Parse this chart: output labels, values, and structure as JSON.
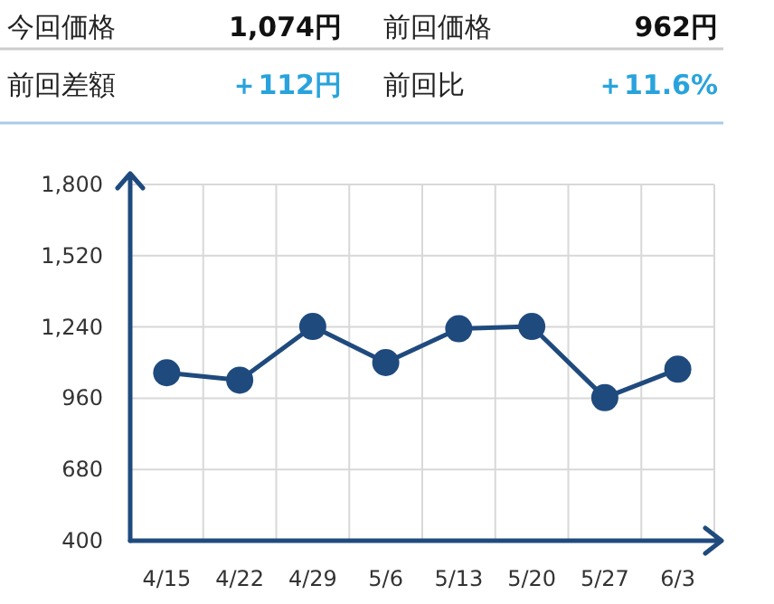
{
  "chart_data": [
    {
      "type": "other",
      "annotations": [
        "今回価格",
        "1,074円",
        "前回価格",
        "962円",
        "前回差額",
        "＋112円",
        "前回比",
        "＋11.6%"
      ],
      "colors": [
        "#222222",
        "#111111",
        "#222222",
        "#111111",
        "#222222",
        "#29a3dc",
        "#222222",
        "#29a3dc"
      ]
    },
    {
      "type": "line",
      "categories": [
        "4/15",
        "4/22",
        "4/29",
        "5/6",
        "5/13",
        "5/20",
        "5/27",
        "6/3"
      ],
      "series": [
        {
          "color": "#1f4a7e",
          "values": [
            1060,
            1031,
            1242,
            1100,
            1233,
            1242,
            962,
            1074
          ]
        }
      ],
      "ylim": [
        400,
        1800
      ],
      "yticks": [
        400,
        680,
        960,
        {
          "value": 1240,
          "label": "1,240"
        },
        {
          "value": 1520,
          "label": "1,520"
        },
        {
          "value": 1800,
          "label": "1,800"
        }
      ],
      "grid": true,
      "marker": "circle",
      "line_style": "solid"
    }
  ]
}
